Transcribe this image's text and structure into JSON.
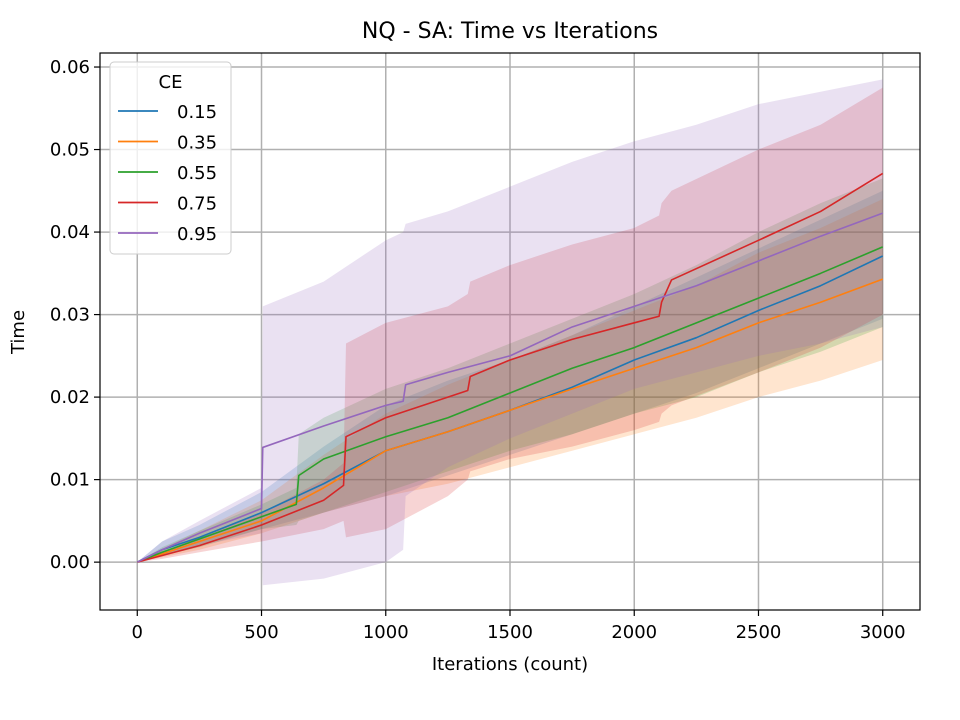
{
  "chart_data": {
    "type": "line",
    "title": "NQ - SA: Time vs Iterations",
    "xlabel": "Iterations (count)",
    "ylabel": "Time",
    "xlim": [
      -150,
      3150
    ],
    "ylim": [
      -0.0058,
      0.0617
    ],
    "xticks": [
      0,
      500,
      1000,
      1500,
      2000,
      2500,
      3000
    ],
    "yticks": [
      0.0,
      0.01,
      0.02,
      0.03,
      0.04,
      0.05,
      0.06
    ],
    "xtick_labels": [
      "0",
      "500",
      "1000",
      "1500",
      "2000",
      "2500",
      "3000"
    ],
    "ytick_labels": [
      "0.00",
      "0.01",
      "0.02",
      "0.03",
      "0.04",
      "0.05",
      "0.06"
    ],
    "grid": true,
    "legend": {
      "title": "CE",
      "placement": "top-left"
    },
    "series": [
      {
        "name": "0.15",
        "color": "#1f77b4",
        "x": [
          0,
          100,
          250,
          500,
          750,
          1000,
          1250,
          1500,
          1750,
          2000,
          2250,
          2500,
          2750,
          3000
        ],
        "y": [
          0,
          0.0015,
          0.003,
          0.006,
          0.0095,
          0.0135,
          0.0158,
          0.0184,
          0.0212,
          0.0245,
          0.0272,
          0.0305,
          0.0335,
          0.0371
        ],
        "lower": [
          0,
          0.0008,
          0.002,
          0.004,
          0.006,
          0.008,
          0.0105,
          0.013,
          0.0155,
          0.018,
          0.0205,
          0.0235,
          0.0265,
          0.0295
        ],
        "upper": [
          0,
          0.0025,
          0.0045,
          0.0085,
          0.014,
          0.019,
          0.022,
          0.0245,
          0.0275,
          0.031,
          0.0345,
          0.038,
          0.0415,
          0.045
        ]
      },
      {
        "name": "0.35",
        "color": "#ff7f0e",
        "x": [
          0,
          100,
          250,
          500,
          750,
          1000,
          1250,
          1500,
          1750,
          2000,
          2250,
          2500,
          2750,
          3000
        ],
        "y": [
          0,
          0.001,
          0.0025,
          0.005,
          0.009,
          0.0135,
          0.0158,
          0.0184,
          0.021,
          0.0235,
          0.026,
          0.029,
          0.0315,
          0.0343
        ],
        "lower": [
          0,
          0.0006,
          0.0015,
          0.0035,
          0.006,
          0.008,
          0.0095,
          0.0115,
          0.0135,
          0.0155,
          0.0175,
          0.02,
          0.022,
          0.0245
        ],
        "upper": [
          0,
          0.0016,
          0.0038,
          0.0075,
          0.013,
          0.018,
          0.0215,
          0.0245,
          0.0275,
          0.0305,
          0.0335,
          0.0375,
          0.0405,
          0.044
        ]
      },
      {
        "name": "0.55",
        "color": "#2ca02c",
        "x": [
          0,
          100,
          250,
          500,
          640,
          650,
          750,
          1000,
          1250,
          1500,
          1750,
          2000,
          2250,
          2500,
          2750,
          3000
        ],
        "y": [
          0,
          0.0012,
          0.0028,
          0.0055,
          0.007,
          0.0105,
          0.0125,
          0.0152,
          0.0175,
          0.0205,
          0.0235,
          0.026,
          0.029,
          0.032,
          0.035,
          0.0382
        ],
        "lower": [
          0,
          0.0008,
          0.0018,
          0.004,
          0.0045,
          0.005,
          0.006,
          0.0085,
          0.011,
          0.0135,
          0.0155,
          0.018,
          0.02,
          0.023,
          0.0255,
          0.0285
        ],
        "upper": [
          0,
          0.0018,
          0.0038,
          0.007,
          0.009,
          0.0155,
          0.0175,
          0.021,
          0.0235,
          0.0265,
          0.0295,
          0.0325,
          0.036,
          0.04,
          0.0435,
          0.0465
        ]
      },
      {
        "name": "0.75",
        "color": "#d62728",
        "x": [
          0,
          100,
          250,
          500,
          750,
          830,
          840,
          1000,
          1250,
          1330,
          1340,
          1500,
          1750,
          2000,
          2100,
          2110,
          2150,
          2500,
          2750,
          3000
        ],
        "y": [
          0,
          0.0008,
          0.002,
          0.0045,
          0.0075,
          0.0093,
          0.0152,
          0.0175,
          0.02,
          0.0208,
          0.0225,
          0.0245,
          0.027,
          0.029,
          0.0298,
          0.0315,
          0.0342,
          0.039,
          0.0425,
          0.0471
        ],
        "lower": [
          0,
          0.0004,
          0.0012,
          0.0025,
          0.004,
          0.005,
          0.003,
          0.004,
          0.008,
          0.01,
          0.011,
          0.0125,
          0.014,
          0.016,
          0.017,
          0.018,
          0.019,
          0.023,
          0.026,
          0.03
        ],
        "upper": [
          0,
          0.0012,
          0.003,
          0.006,
          0.01,
          0.012,
          0.0265,
          0.029,
          0.031,
          0.0325,
          0.034,
          0.036,
          0.0385,
          0.0405,
          0.042,
          0.0435,
          0.045,
          0.05,
          0.053,
          0.0575
        ]
      },
      {
        "name": "0.95",
        "color": "#9467bd",
        "x": [
          0,
          100,
          250,
          500,
          505,
          750,
          1000,
          1070,
          1080,
          1250,
          1500,
          1750,
          2000,
          2250,
          2500,
          2750,
          3000
        ],
        "y": [
          0,
          0.0015,
          0.0035,
          0.0065,
          0.0139,
          0.0165,
          0.019,
          0.0195,
          0.0215,
          0.023,
          0.025,
          0.0285,
          0.031,
          0.0335,
          0.0365,
          0.0395,
          0.0423
        ],
        "lower": [
          0,
          0.0008,
          0.002,
          0.0035,
          -0.0028,
          -0.002,
          0.0,
          0.0015,
          0.008,
          0.0115,
          0.015,
          0.018,
          0.021,
          0.023,
          0.025,
          0.0265,
          0.0285
        ],
        "upper": [
          0,
          0.0025,
          0.005,
          0.009,
          0.031,
          0.034,
          0.039,
          0.04,
          0.041,
          0.0425,
          0.0455,
          0.0485,
          0.051,
          0.053,
          0.0555,
          0.057,
          0.0585
        ]
      }
    ]
  }
}
